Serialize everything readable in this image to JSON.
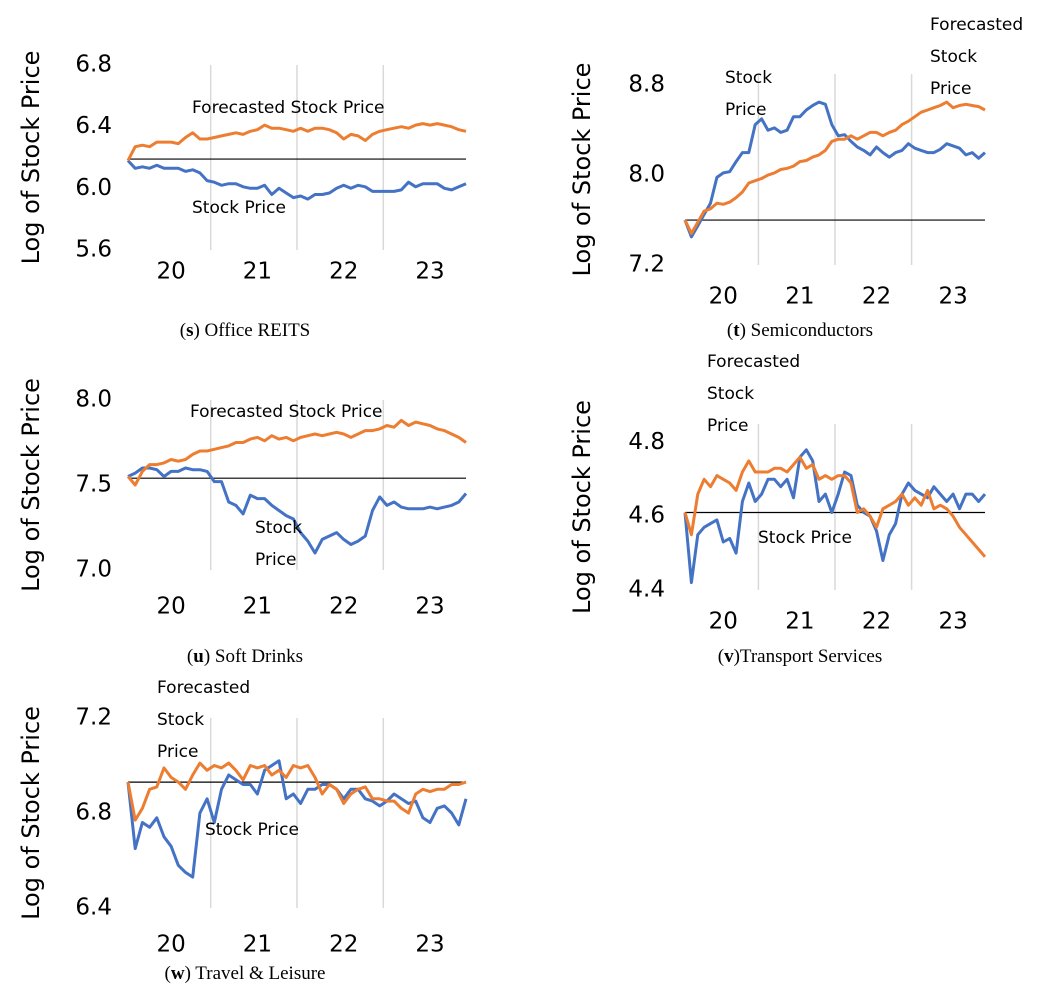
{
  "chart_data": [
    {
      "type": "line",
      "caption": "(s) Office REITS",
      "ylabel": "Log of Stock Price",
      "categories": [
        null,
        null,
        null,
        null,
        null,
        null,
        "20",
        null,
        null,
        null,
        null,
        null,
        null,
        null,
        null,
        null,
        null,
        null,
        "21",
        null,
        null,
        null,
        null,
        null,
        null,
        null,
        null,
        null,
        null,
        null,
        "22",
        null,
        null,
        null,
        null,
        null,
        null,
        null,
        null,
        null,
        null,
        null,
        "23",
        null,
        null,
        null,
        null,
        null
      ],
      "ylim": [
        5.6,
        6.8
      ],
      "yticks": [
        5.6,
        {
          "value": 6,
          "label": "6.0"
        },
        6.4,
        6.8
      ],
      "reference": 6.19,
      "grid": true,
      "series": [
        {
          "name": "Stock Price",
          "color": "#4472c4",
          "values": [
            6.18,
            6.13,
            6.14,
            6.13,
            6.15,
            6.13,
            6.13,
            6.13,
            6.11,
            6.12,
            6.1,
            6.05,
            6.04,
            6.02,
            6.03,
            6.03,
            6.01,
            6.0,
            6.0,
            6.02,
            5.96,
            6.0,
            5.97,
            5.94,
            5.95,
            5.93,
            5.96,
            5.96,
            5.97,
            6.0,
            6.02,
            6.0,
            6.02,
            6.01,
            5.98,
            5.98,
            5.98,
            5.98,
            5.99,
            6.04,
            6.01,
            6.03,
            6.03,
            6.03,
            6.0,
            5.99,
            6.01,
            6.03
          ]
        },
        {
          "name": "Forecasted Stock Price",
          "color": "#ed7d31",
          "values": [
            6.18,
            6.27,
            6.28,
            6.27,
            6.3,
            6.3,
            6.3,
            6.29,
            6.33,
            6.36,
            6.32,
            6.32,
            6.33,
            6.34,
            6.35,
            6.36,
            6.35,
            6.37,
            6.38,
            6.41,
            6.39,
            6.39,
            6.38,
            6.37,
            6.39,
            6.37,
            6.39,
            6.39,
            6.38,
            6.36,
            6.32,
            6.35,
            6.34,
            6.31,
            6.35,
            6.37,
            6.38,
            6.39,
            6.4,
            6.39,
            6.41,
            6.42,
            6.41,
            6.42,
            6.41,
            6.4,
            6.38,
            6.37
          ]
        }
      ]
    },
    {
      "type": "line",
      "caption": "(t) Semiconductors",
      "ylabel": "Log of Stock Price",
      "categories": [
        null,
        null,
        null,
        null,
        null,
        null,
        "20",
        null,
        null,
        null,
        null,
        null,
        null,
        null,
        null,
        null,
        null,
        null,
        "21",
        null,
        null,
        null,
        null,
        null,
        null,
        null,
        null,
        null,
        null,
        null,
        "22",
        null,
        null,
        null,
        null,
        null,
        null,
        null,
        null,
        null,
        null,
        null,
        "23",
        null,
        null,
        null,
        null,
        null
      ],
      "ylim": [
        7.2,
        8.9
      ],
      "yticks": [
        7.2,
        {
          "value": 8,
          "label": "8.0"
        },
        8.8
      ],
      "reference": 7.6,
      "grid": true,
      "series": [
        {
          "name": "Stock Price",
          "color": "#4472c4",
          "values": [
            7.6,
            7.45,
            7.55,
            7.65,
            7.75,
            7.98,
            8.02,
            8.03,
            8.12,
            8.2,
            8.2,
            8.45,
            8.5,
            8.4,
            8.42,
            8.38,
            8.4,
            8.52,
            8.52,
            8.58,
            8.62,
            8.65,
            8.63,
            8.45,
            8.35,
            8.36,
            8.3,
            8.25,
            8.22,
            8.18,
            8.25,
            8.2,
            8.16,
            8.2,
            8.22,
            8.28,
            8.24,
            8.22,
            8.2,
            8.2,
            8.23,
            8.28,
            8.26,
            8.24,
            8.18,
            8.2,
            8.15,
            8.2
          ]
        },
        {
          "name": "Forecasted Stock Price",
          "color": "#ed7d31",
          "values": [
            7.6,
            7.48,
            7.58,
            7.68,
            7.7,
            7.75,
            7.74,
            7.76,
            7.8,
            7.85,
            7.93,
            7.95,
            7.97,
            8.0,
            8.02,
            8.05,
            8.06,
            8.08,
            8.12,
            8.13,
            8.16,
            8.18,
            8.22,
            8.3,
            8.32,
            8.32,
            8.35,
            8.32,
            8.35,
            8.38,
            8.38,
            8.35,
            8.38,
            8.4,
            8.45,
            8.48,
            8.52,
            8.56,
            8.58,
            8.6,
            8.62,
            8.65,
            8.6,
            8.62,
            8.63,
            8.62,
            8.61,
            8.58
          ]
        }
      ]
    },
    {
      "type": "line",
      "caption": "(u) Soft Drinks",
      "ylabel": "Log of Stock Price",
      "categories": [
        null,
        null,
        null,
        null,
        null,
        null,
        "20",
        null,
        null,
        null,
        null,
        null,
        null,
        null,
        null,
        null,
        null,
        null,
        "21",
        null,
        null,
        null,
        null,
        null,
        null,
        null,
        null,
        null,
        null,
        null,
        "22",
        null,
        null,
        null,
        null,
        null,
        null,
        null,
        null,
        null,
        null,
        null,
        "23",
        null,
        null,
        null,
        null,
        null
      ],
      "ylim": [
        7.0,
        8.0
      ],
      "yticks": [
        {
          "value": 7,
          "label": "7.0"
        },
        7.5,
        {
          "value": 8,
          "label": "8.0"
        }
      ],
      "reference": 7.54,
      "grid": true,
      "series": [
        {
          "name": "Stock Price",
          "color": "#4472c4",
          "values": [
            7.55,
            7.57,
            7.6,
            7.6,
            7.59,
            7.55,
            7.58,
            7.58,
            7.6,
            7.59,
            7.59,
            7.58,
            7.52,
            7.52,
            7.4,
            7.38,
            7.33,
            7.44,
            7.42,
            7.42,
            7.38,
            7.35,
            7.32,
            7.3,
            7.22,
            7.17,
            7.1,
            7.18,
            7.2,
            7.22,
            7.18,
            7.15,
            7.17,
            7.2,
            7.35,
            7.43,
            7.38,
            7.4,
            7.37,
            7.36,
            7.36,
            7.36,
            7.37,
            7.36,
            7.37,
            7.38,
            7.4,
            7.45
          ]
        },
        {
          "name": "Forecasted Stock Price",
          "color": "#ed7d31",
          "values": [
            7.55,
            7.5,
            7.58,
            7.62,
            7.62,
            7.63,
            7.65,
            7.64,
            7.65,
            7.68,
            7.7,
            7.7,
            7.71,
            7.72,
            7.73,
            7.75,
            7.75,
            7.77,
            7.78,
            7.76,
            7.79,
            7.77,
            7.78,
            7.76,
            7.78,
            7.79,
            7.8,
            7.79,
            7.8,
            7.81,
            7.8,
            7.78,
            7.8,
            7.82,
            7.82,
            7.83,
            7.85,
            7.84,
            7.88,
            7.85,
            7.87,
            7.86,
            7.85,
            7.83,
            7.82,
            7.8,
            7.78,
            7.75
          ]
        }
      ]
    },
    {
      "type": "line",
      "caption": "(v)Transport Services",
      "ylabel": "Log of Stock Price",
      "categories": [
        null,
        null,
        null,
        null,
        null,
        null,
        "20",
        null,
        null,
        null,
        null,
        null,
        null,
        null,
        null,
        null,
        null,
        null,
        "21",
        null,
        null,
        null,
        null,
        null,
        null,
        null,
        null,
        null,
        null,
        null,
        "22",
        null,
        null,
        null,
        null,
        null,
        null,
        null,
        null,
        null,
        null,
        null,
        "23",
        null,
        null,
        null,
        null,
        null
      ],
      "ylim": [
        4.4,
        4.85
      ],
      "yticks": [
        4.4,
        4.6,
        4.8
      ],
      "reference": 4.61,
      "grid": true,
      "series": [
        {
          "name": "Stock Price",
          "color": "#4472c4",
          "values": [
            4.61,
            4.42,
            4.55,
            4.57,
            4.58,
            4.59,
            4.53,
            4.54,
            4.5,
            4.64,
            4.69,
            4.64,
            4.66,
            4.7,
            4.7,
            4.68,
            4.7,
            4.65,
            4.76,
            4.78,
            4.75,
            4.64,
            4.66,
            4.61,
            4.66,
            4.72,
            4.71,
            4.63,
            4.61,
            4.6,
            4.56,
            4.48,
            4.55,
            4.58,
            4.66,
            4.69,
            4.67,
            4.66,
            4.65,
            4.68,
            4.66,
            4.64,
            4.66,
            4.62,
            4.66,
            4.66,
            4.64,
            4.66
          ]
        },
        {
          "name": "Forecasted Stock Price",
          "color": "#ed7d31",
          "values": [
            4.61,
            4.55,
            4.66,
            4.7,
            4.68,
            4.71,
            4.7,
            4.69,
            4.67,
            4.72,
            4.75,
            4.72,
            4.72,
            4.72,
            4.73,
            4.73,
            4.72,
            4.74,
            4.76,
            4.73,
            4.74,
            4.7,
            4.71,
            4.7,
            4.71,
            4.71,
            4.69,
            4.61,
            4.62,
            4.6,
            4.57,
            4.62,
            4.63,
            4.64,
            4.66,
            4.63,
            4.65,
            4.63,
            4.67,
            4.62,
            4.63,
            4.62,
            4.6,
            4.57,
            4.55,
            4.53,
            4.51,
            4.49
          ]
        }
      ]
    },
    {
      "type": "line",
      "caption": "(w) Travel & Leisure",
      "ylabel": "Log of Stock Price",
      "categories": [
        null,
        null,
        null,
        null,
        null,
        null,
        "20",
        null,
        null,
        null,
        null,
        null,
        null,
        null,
        null,
        null,
        null,
        null,
        "21",
        null,
        null,
        null,
        null,
        null,
        null,
        null,
        null,
        null,
        null,
        null,
        "22",
        null,
        null,
        null,
        null,
        null,
        null,
        null,
        null,
        null,
        null,
        null,
        "23",
        null,
        null,
        null,
        null,
        null
      ],
      "ylim": [
        6.4,
        7.2
      ],
      "yticks": [
        6.4,
        6.8,
        7.2
      ],
      "reference": 6.93,
      "grid": true,
      "series": [
        {
          "name": "Stock Price",
          "color": "#4472c4",
          "values": [
            6.93,
            6.65,
            6.76,
            6.74,
            6.78,
            6.7,
            6.66,
            6.58,
            6.55,
            6.53,
            6.8,
            6.86,
            6.76,
            6.9,
            6.96,
            6.94,
            6.92,
            6.92,
            6.88,
            6.98,
            7.0,
            7.02,
            6.86,
            6.88,
            6.84,
            6.9,
            6.9,
            6.92,
            6.92,
            6.9,
            6.86,
            6.9,
            6.9,
            6.86,
            6.85,
            6.83,
            6.85,
            6.88,
            6.86,
            6.84,
            6.85,
            6.78,
            6.76,
            6.82,
            6.83,
            6.8,
            6.75,
            6.86
          ]
        },
        {
          "name": "Forecasted Stock Price",
          "color": "#ed7d31",
          "values": [
            6.93,
            6.77,
            6.82,
            6.9,
            6.91,
            6.99,
            6.95,
            6.93,
            6.9,
            6.96,
            7.01,
            6.98,
            7.0,
            6.99,
            7.01,
            6.98,
            6.94,
            7.0,
            6.99,
            7.0,
            6.96,
            6.98,
            6.95,
            7.0,
            6.99,
            7.0,
            6.95,
            6.88,
            6.92,
            6.9,
            6.84,
            6.88,
            6.9,
            6.91,
            6.86,
            6.86,
            6.85,
            6.85,
            6.82,
            6.8,
            6.88,
            6.9,
            6.89,
            6.9,
            6.9,
            6.92,
            6.92,
            6.93
          ]
        }
      ]
    }
  ]
}
